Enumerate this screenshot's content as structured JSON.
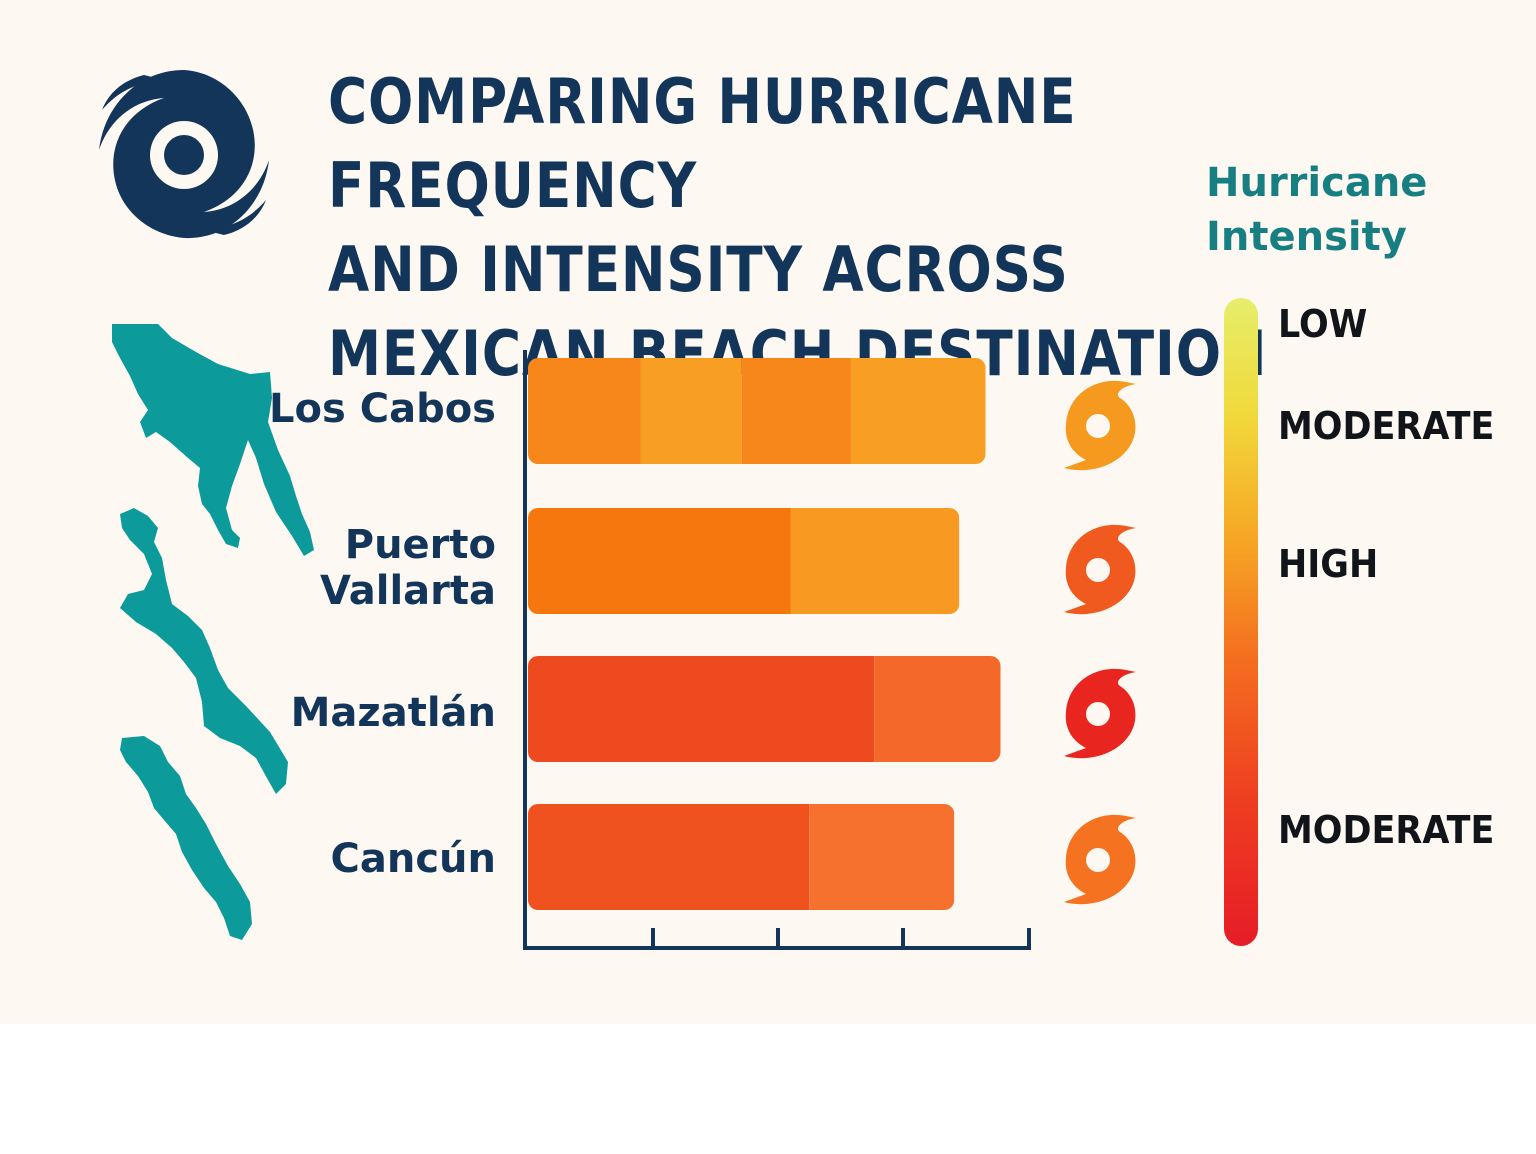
{
  "title": "COMPARING HURRICANE FREQUENCY\nAND INTENSITY ACROSS\nMEXICAN BEACH DESTINATION",
  "legend": {
    "title": "Hurricane\nIntensity",
    "levels": [
      "LOW",
      "MODERATE",
      "HIGH",
      "MODERATE"
    ]
  },
  "icons": {
    "logo": "hurricane-icon",
    "row_marker": "hurricane-icon"
  },
  "colors": {
    "title": "#14355a",
    "legend_title": "#177f82",
    "map": "#0d9a9a",
    "axis": "#14355a",
    "scale_low": "#e6ee6a",
    "scale_high": "#e61d27"
  },
  "chart_data": {
    "type": "bar",
    "orientation": "horizontal",
    "categories": [
      "Los Cabos",
      "Puerto\nVallarta",
      "Mazatlán",
      "Cancún"
    ],
    "category_labels": [
      "Los Cabos",
      "Puerto\nVallarta",
      "Mazatlán",
      "Cancún"
    ],
    "values": [
      3.66,
      3.45,
      3.78,
      3.41
    ],
    "segments": [
      [
        {
          "value": 0.9,
          "color": "#f7861b"
        },
        {
          "value": 0.81,
          "color": "#f89e22"
        },
        {
          "value": 0.87,
          "color": "#f7861b"
        },
        {
          "value": 1.08,
          "color": "#f89e22"
        }
      ],
      [
        {
          "value": 2.1,
          "color": "#f7770f"
        },
        {
          "value": 1.35,
          "color": "#f89a21"
        }
      ],
      [
        {
          "value": 2.77,
          "color": "#ee4a1f"
        },
        {
          "value": 1.01,
          "color": "#f4682a"
        }
      ],
      [
        {
          "value": 2.25,
          "color": "#ef521f"
        },
        {
          "value": 1.16,
          "color": "#f5712d"
        }
      ]
    ],
    "intensity": [
      "MODERATE",
      "HIGH",
      "HIGH",
      "HIGH"
    ],
    "intensity_colors": [
      "#f59a1f",
      "#f05a1e",
      "#e8261f",
      "#f57220"
    ],
    "xlim": [
      0,
      4
    ],
    "xticks": [
      0,
      1,
      2,
      3,
      4
    ],
    "xlabel": "",
    "ylabel": "",
    "grid": false,
    "legend_position": "right"
  }
}
